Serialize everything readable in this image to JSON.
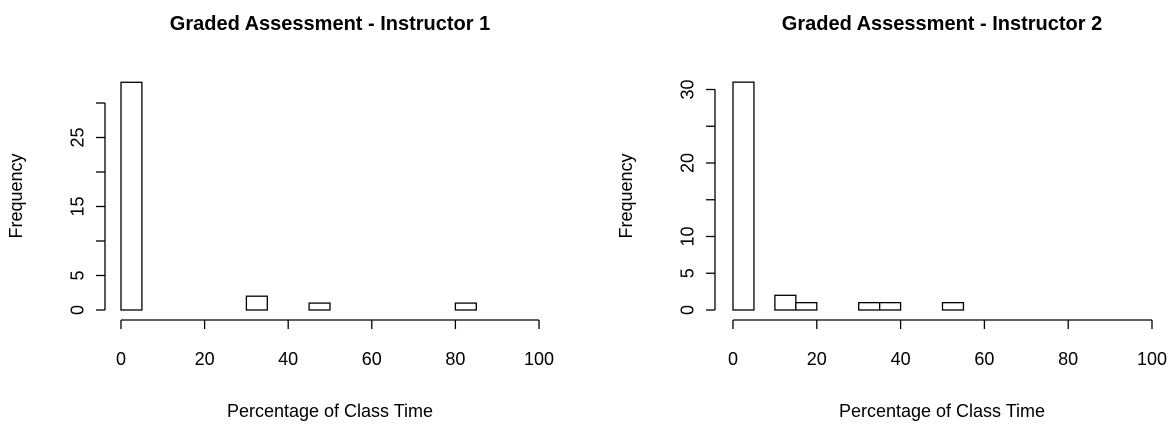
{
  "chart_data": [
    {
      "type": "histogram",
      "title": "Graded Assessment - Instructor 1",
      "xlabel": "Percentage of Class Time",
      "ylabel": "Frequency",
      "xlim": [
        0,
        100
      ],
      "ylim": [
        0,
        32
      ],
      "x_ticks": [
        0,
        20,
        40,
        60,
        80,
        100
      ],
      "y_ticks": [
        0,
        5,
        10,
        15,
        20,
        25,
        30
      ],
      "y_tick_labels": [
        "0",
        "5",
        "",
        "15",
        "",
        "25",
        ""
      ],
      "bins": [
        {
          "x0": 0,
          "x1": 5,
          "count": 33
        },
        {
          "x0": 5,
          "x1": 10,
          "count": 0
        },
        {
          "x0": 10,
          "x1": 15,
          "count": 0
        },
        {
          "x0": 15,
          "x1": 20,
          "count": 0
        },
        {
          "x0": 20,
          "x1": 25,
          "count": 0
        },
        {
          "x0": 25,
          "x1": 30,
          "count": 0
        },
        {
          "x0": 30,
          "x1": 35,
          "count": 2
        },
        {
          "x0": 35,
          "x1": 40,
          "count": 0
        },
        {
          "x0": 40,
          "x1": 45,
          "count": 0
        },
        {
          "x0": 45,
          "x1": 50,
          "count": 1
        },
        {
          "x0": 50,
          "x1": 55,
          "count": 0
        },
        {
          "x0": 55,
          "x1": 60,
          "count": 0
        },
        {
          "x0": 60,
          "x1": 65,
          "count": 0
        },
        {
          "x0": 65,
          "x1": 70,
          "count": 0
        },
        {
          "x0": 70,
          "x1": 75,
          "count": 0
        },
        {
          "x0": 75,
          "x1": 80,
          "count": 0
        },
        {
          "x0": 80,
          "x1": 85,
          "count": 1
        }
      ]
    },
    {
      "type": "histogram",
      "title": "Graded Assessment - Instructor 2",
      "xlabel": "Percentage of Class Time",
      "ylabel": "Frequency",
      "xlim": [
        0,
        100
      ],
      "ylim": [
        0,
        31
      ],
      "x_ticks": [
        0,
        20,
        40,
        60,
        80,
        100
      ],
      "y_ticks": [
        0,
        5,
        10,
        15,
        20,
        25,
        30
      ],
      "y_tick_labels": [
        "0",
        "5",
        "10",
        "",
        "20",
        "",
        "30"
      ],
      "bins": [
        {
          "x0": 0,
          "x1": 5,
          "count": 31
        },
        {
          "x0": 5,
          "x1": 10,
          "count": 0
        },
        {
          "x0": 10,
          "x1": 15,
          "count": 2
        },
        {
          "x0": 15,
          "x1": 20,
          "count": 1
        },
        {
          "x0": 20,
          "x1": 25,
          "count": 0
        },
        {
          "x0": 25,
          "x1": 30,
          "count": 0
        },
        {
          "x0": 30,
          "x1": 35,
          "count": 1
        },
        {
          "x0": 35,
          "x1": 40,
          "count": 1
        },
        {
          "x0": 40,
          "x1": 45,
          "count": 0
        },
        {
          "x0": 45,
          "x1": 50,
          "count": 0
        },
        {
          "x0": 50,
          "x1": 55,
          "count": 1
        }
      ]
    }
  ]
}
